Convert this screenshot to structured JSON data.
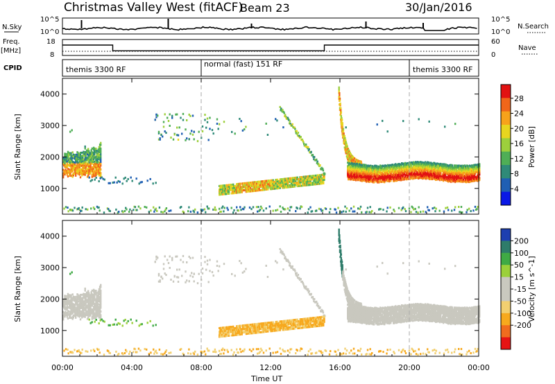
{
  "header": {
    "title": "Christmas Valley West (fitACF)",
    "beam": "Beam 23",
    "date": "30/Jan/2016"
  },
  "panels": {
    "nsky": {
      "label": "N.Sky",
      "ticks": [
        "10^5",
        "10^0"
      ],
      "right_ticks": [
        "10^5",
        "10^0"
      ],
      "right_label": "N.Search"
    },
    "freq": {
      "label_line1": "Freq.",
      "label_line2": "[MHz]",
      "ticks": [
        "18",
        "8"
      ],
      "right_ticks": [
        "60",
        "0"
      ],
      "right_label": "Nave"
    },
    "cpid": {
      "label": "CPID",
      "segments": [
        {
          "name": "themis 3300 RF",
          "start_h": 0,
          "end_h": 8
        },
        {
          "name": "normal (fast) 151 RF",
          "start_h": 8,
          "end_h": 20
        },
        {
          "name": "themis 3300 RF",
          "start_h": 20,
          "end_h": 24
        }
      ]
    },
    "power_colorbar": {
      "label": "Power [dB]",
      "ticks": [
        "28",
        "24",
        "20",
        "16",
        "12",
        "8",
        "4"
      ]
    },
    "velocity_colorbar": {
      "label": "Velocity [m s^-1]",
      "ticks": [
        "200",
        "100",
        "50",
        "15",
        "-15",
        "-50",
        "-100",
        "-200"
      ]
    }
  },
  "chart_data": [
    {
      "type": "heatmap",
      "panel": "power",
      "xlabel": "",
      "ylabel": "Slant Range [km]",
      "x_range_h": [
        0,
        24
      ],
      "ylim": [
        180,
        4500
      ],
      "y_ticks": [
        1000,
        2000,
        3000,
        4000
      ],
      "colorbar": {
        "label": "Power [dB]",
        "range": [
          0,
          30
        ]
      }
    },
    {
      "type": "heatmap",
      "panel": "velocity",
      "xlabel": "Time UT",
      "ylabel": "Slant Range [km]",
      "x_range_h": [
        0,
        24
      ],
      "x_tick_labels": [
        "00:00",
        "04:00",
        "08:00",
        "12:00",
        "16:00",
        "20:00",
        "00:00"
      ],
      "ylim": [
        180,
        4500
      ],
      "y_ticks": [
        1000,
        2000,
        3000,
        4000
      ],
      "colorbar": {
        "label": "Velocity [m s^-1]",
        "range": [
          -250,
          250
        ]
      }
    },
    {
      "type": "line",
      "panel": "frequency",
      "ylim": [
        8,
        18
      ],
      "series": [
        {
          "x_h": [
            0,
            2.9,
            2.9,
            15.1,
            15.1,
            24
          ],
          "y_mhz": [
            14.5,
            14.5,
            10.9,
            10.9,
            14.5,
            14.5
          ]
        }
      ]
    }
  ],
  "colors": {
    "power_scale": [
      "#0a18e6",
      "#1f5fb3",
      "#2f8a78",
      "#4fae56",
      "#9dcf3c",
      "#e8d51f",
      "#f7a21b",
      "#f0661a",
      "#e21212"
    ],
    "velocity_scale": [
      "#e61414",
      "#f06c1e",
      "#f7a91e",
      "#f2cf70",
      "#c9c8bf",
      "#c9c8bf",
      "#9bd03a",
      "#3faa45",
      "#2e7c6a",
      "#1e3fb0"
    ]
  }
}
